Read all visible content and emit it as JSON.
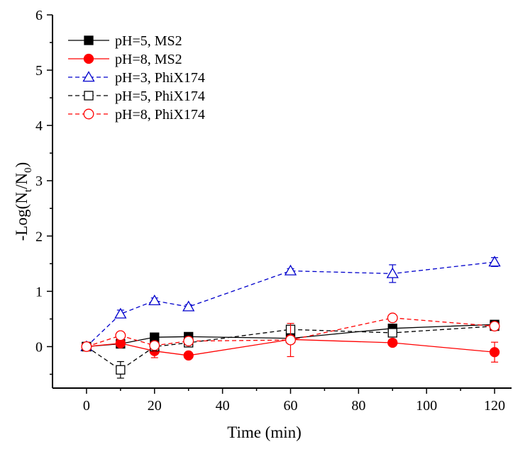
{
  "chart_data": {
    "type": "line",
    "title": "",
    "xlabel": "Time (min)",
    "ylabel_main": "-Log(N",
    "ylabel_sub_t": "t",
    "ylabel_mid": "/N",
    "ylabel_sub_0": "0",
    "ylabel_close": ")",
    "xlim": [
      -10,
      125
    ],
    "ylim": [
      -0.75,
      6
    ],
    "xticks": [
      0,
      20,
      40,
      60,
      80,
      100,
      120
    ],
    "yticks": [
      0,
      1,
      2,
      3,
      4,
      5,
      6
    ],
    "grid": false,
    "legend_position": "top-left",
    "series": [
      {
        "name": "pH=5, MS2",
        "color": "#000000",
        "dash": "solid",
        "marker": "square-filled",
        "x": [
          0,
          10,
          20,
          30,
          60,
          90,
          120
        ],
        "y": [
          0,
          0.05,
          0.17,
          0.18,
          0.15,
          0.33,
          0.4
        ],
        "err": [
          0.02,
          0.03,
          0.03,
          0.03,
          0.03,
          0.04,
          0.03
        ]
      },
      {
        "name": "pH=8, MS2",
        "color": "#ff0000",
        "dash": "solid",
        "marker": "circle-filled",
        "x": [
          0,
          10,
          20,
          30,
          60,
          90,
          120
        ],
        "y": [
          0,
          0.06,
          -0.08,
          -0.16,
          0.13,
          0.07,
          -0.1
        ],
        "err": [
          0.02,
          0.04,
          0.12,
          0.05,
          0.06,
          0.05,
          0.18
        ]
      },
      {
        "name": "pH=3, PhiX174",
        "color": "#0000cc",
        "dash": "dashed",
        "marker": "triangle-open",
        "x": [
          0,
          10,
          20,
          30,
          60,
          90,
          120
        ],
        "y": [
          0,
          0.59,
          0.83,
          0.72,
          1.37,
          1.32,
          1.53
        ],
        "err": [
          0.03,
          0.07,
          0.05,
          0.04,
          0.04,
          0.16,
          0.08
        ]
      },
      {
        "name": "pH=5, PhiX174",
        "color": "#000000",
        "dash": "dashed",
        "marker": "square-open",
        "x": [
          0,
          10,
          20,
          30,
          60,
          90,
          120
        ],
        "y": [
          0,
          -0.42,
          0.0,
          0.07,
          0.31,
          0.25,
          0.37
        ],
        "err": [
          0.02,
          0.15,
          0.03,
          0.03,
          0.05,
          0.05,
          0.04
        ]
      },
      {
        "name": "pH=8, PhiX174",
        "color": "#ff0000",
        "dash": "dashed",
        "marker": "circle-open",
        "x": [
          0,
          10,
          20,
          30,
          60,
          90,
          120
        ],
        "y": [
          0,
          0.2,
          0.02,
          0.1,
          0.12,
          0.52,
          0.37
        ],
        "err": [
          0.03,
          0.04,
          0.06,
          0.04,
          0.3,
          0.05,
          0.06
        ]
      }
    ]
  }
}
